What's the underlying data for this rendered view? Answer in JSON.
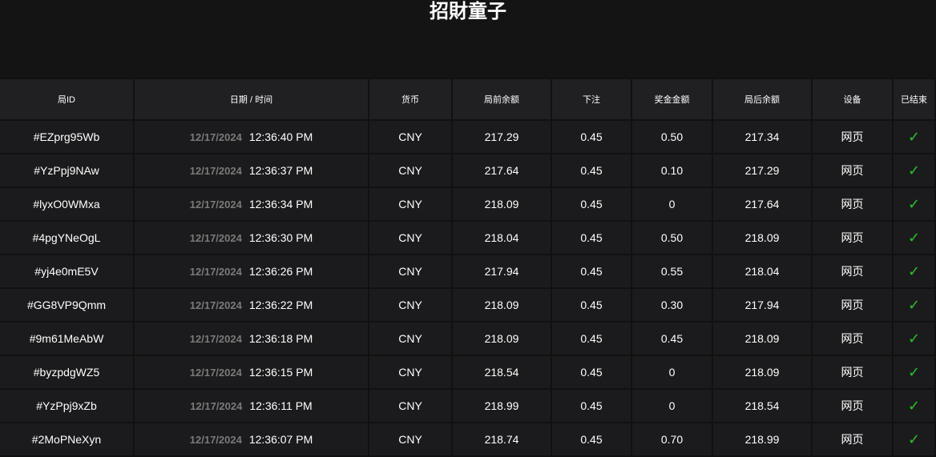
{
  "title": "招財童子",
  "columns": [
    "局ID",
    "日期 / 时间",
    "货币",
    "局前余额",
    "下注",
    "奖金金额",
    "局后余额",
    "设备",
    "已结束"
  ],
  "rows": [
    {
      "id": "#EZprg95Wb",
      "date": "12/17/2024",
      "time": "12:36:40 PM",
      "currency": "CNY",
      "before": "217.29",
      "bet": "0.45",
      "win": "0.50",
      "after": "217.34",
      "device": "网页",
      "done": "✓"
    },
    {
      "id": "#YzPpj9NAw",
      "date": "12/17/2024",
      "time": "12:36:37 PM",
      "currency": "CNY",
      "before": "217.64",
      "bet": "0.45",
      "win": "0.10",
      "after": "217.29",
      "device": "网页",
      "done": "✓"
    },
    {
      "id": "#lyxO0WMxa",
      "date": "12/17/2024",
      "time": "12:36:34 PM",
      "currency": "CNY",
      "before": "218.09",
      "bet": "0.45",
      "win": "0",
      "after": "217.64",
      "device": "网页",
      "done": "✓"
    },
    {
      "id": "#4pgYNeOgL",
      "date": "12/17/2024",
      "time": "12:36:30 PM",
      "currency": "CNY",
      "before": "218.04",
      "bet": "0.45",
      "win": "0.50",
      "after": "218.09",
      "device": "网页",
      "done": "✓"
    },
    {
      "id": "#yj4e0mE5V",
      "date": "12/17/2024",
      "time": "12:36:26 PM",
      "currency": "CNY",
      "before": "217.94",
      "bet": "0.45",
      "win": "0.55",
      "after": "218.04",
      "device": "网页",
      "done": "✓"
    },
    {
      "id": "#GG8VP9Qmm",
      "date": "12/17/2024",
      "time": "12:36:22 PM",
      "currency": "CNY",
      "before": "218.09",
      "bet": "0.45",
      "win": "0.30",
      "after": "217.94",
      "device": "网页",
      "done": "✓"
    },
    {
      "id": "#9m61MeAbW",
      "date": "12/17/2024",
      "time": "12:36:18 PM",
      "currency": "CNY",
      "before": "218.09",
      "bet": "0.45",
      "win": "0.45",
      "after": "218.09",
      "device": "网页",
      "done": "✓"
    },
    {
      "id": "#byzpdgWZ5",
      "date": "12/17/2024",
      "time": "12:36:15 PM",
      "currency": "CNY",
      "before": "218.54",
      "bet": "0.45",
      "win": "0",
      "after": "218.09",
      "device": "网页",
      "done": "✓"
    },
    {
      "id": "#YzPpj9xZb",
      "date": "12/17/2024",
      "time": "12:36:11 PM",
      "currency": "CNY",
      "before": "218.99",
      "bet": "0.45",
      "win": "0",
      "after": "218.54",
      "device": "网页",
      "done": "✓"
    },
    {
      "id": "#2MoPNeXyn",
      "date": "12/17/2024",
      "time": "12:36:07 PM",
      "currency": "CNY",
      "before": "218.74",
      "bet": "0.45",
      "win": "0.70",
      "after": "218.99",
      "device": "网页",
      "done": "✓"
    }
  ],
  "colors": {
    "check": "#2ac02a",
    "date": "#7a7a7a"
  }
}
